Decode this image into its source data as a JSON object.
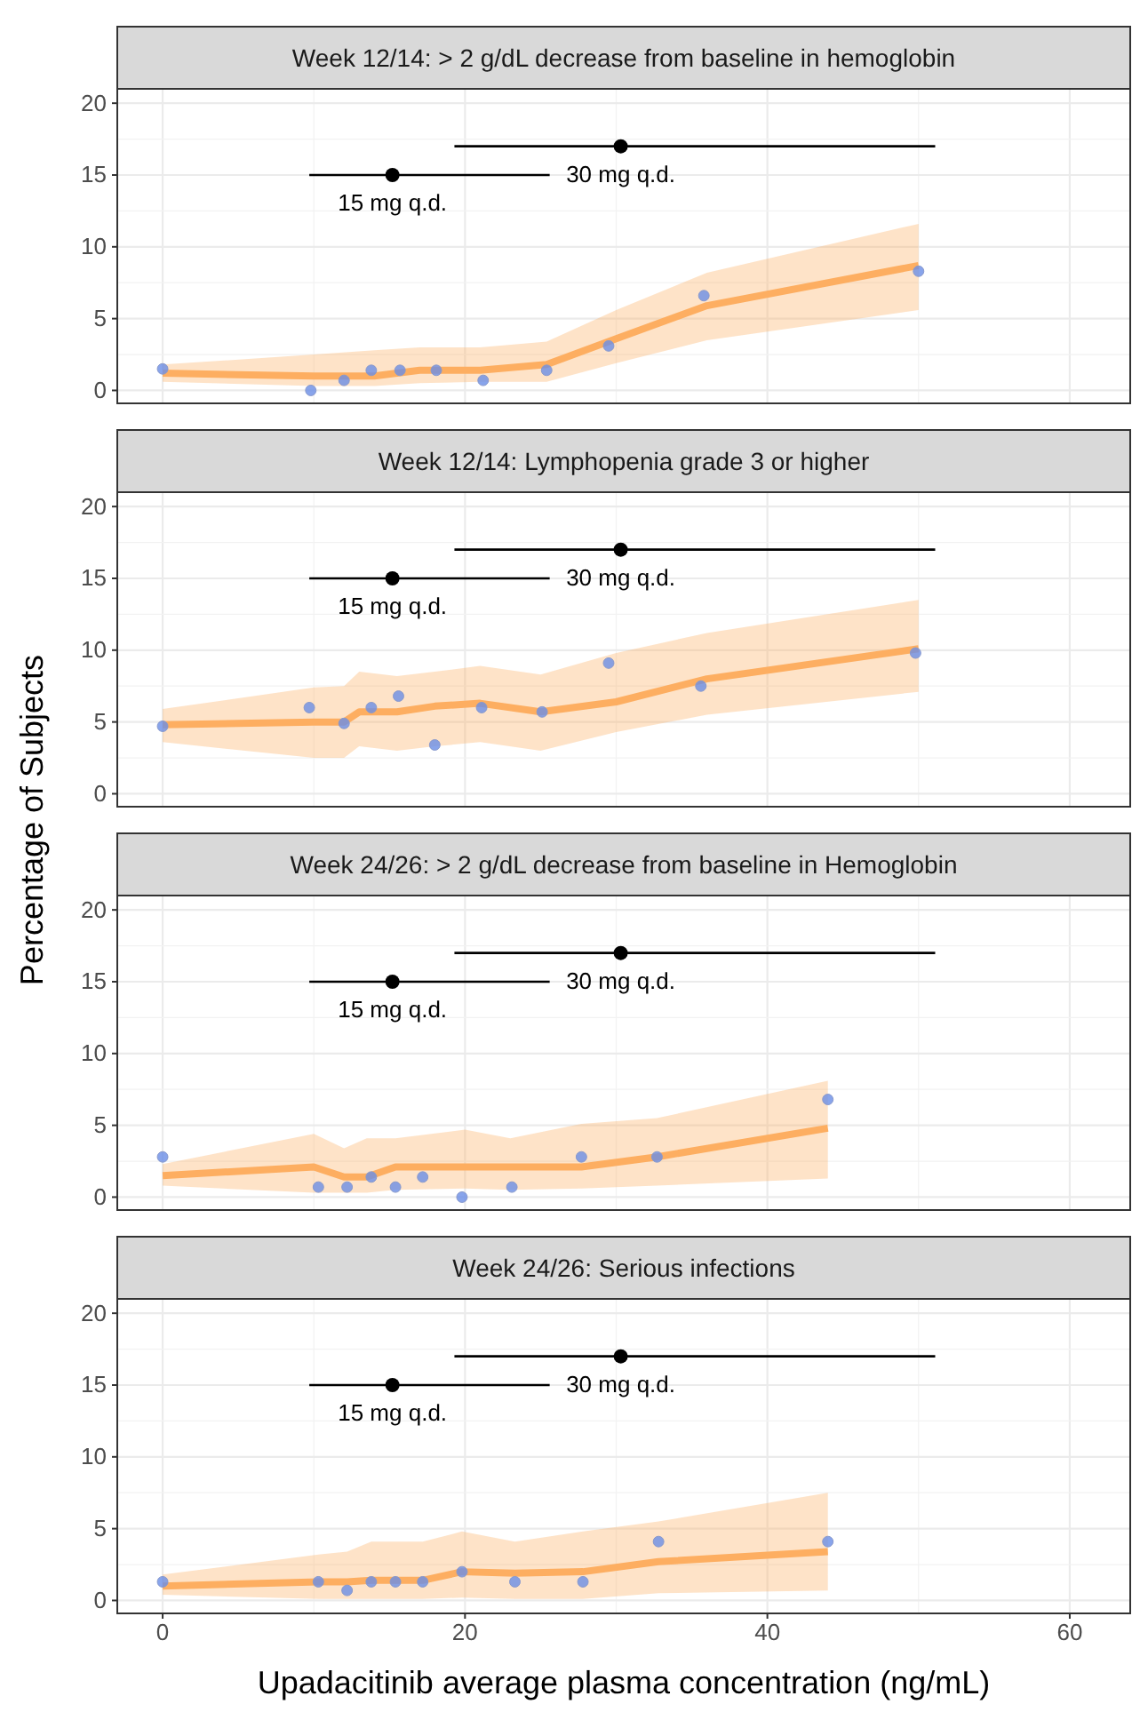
{
  "chart_data": [
    {
      "type": "scatter",
      "title": "Week 12/14: > 2 g/dL decrease from baseline in hemoglobin",
      "xlim": [
        -3,
        64
      ],
      "ylim": [
        -0.9,
        21
      ],
      "xticks": [
        0,
        20,
        40,
        60
      ],
      "yticks": [
        0,
        5,
        10,
        15,
        20
      ],
      "grid": true,
      "legend": false,
      "tick_labels": "y",
      "series": [
        {
          "type": "line",
          "marker": "none",
          "color": "#fdae61",
          "x": [
            0,
            10,
            14,
            17,
            21,
            25.4,
            30,
            36,
            50
          ],
          "values": [
            1.2,
            1.0,
            1.0,
            1.4,
            1.4,
            1.8,
            3.6,
            5.9,
            8.7
          ],
          "lower": [
            0.6,
            0.3,
            0.3,
            0.5,
            0.6,
            0.6,
            1.9,
            3.5,
            5.6
          ],
          "upper": [
            1.8,
            2.5,
            2.8,
            3.0,
            3.0,
            3.4,
            5.6,
            8.2,
            11.6
          ]
        },
        {
          "marker": "circle",
          "color": "#6a8de6",
          "x": [
            0,
            9.8,
            12.0,
            13.8,
            15.7,
            18.1,
            21.2,
            25.4,
            29.5,
            35.8,
            50.0
          ],
          "values": [
            1.5,
            0,
            0.7,
            1.4,
            1.4,
            1.4,
            0.7,
            1.4,
            3.1,
            6.6,
            8.3
          ]
        },
        {
          "marker": "circle",
          "name": "15 mg q.d.",
          "color": "#000000",
          "x": [
            15.2
          ],
          "values": [
            15
          ],
          "xerrors": [
            [
              9.7,
              25.6
            ]
          ]
        },
        {
          "marker": "circle",
          "name": "30 mg q.d.",
          "color": "#000000",
          "x": [
            30.3
          ],
          "values": [
            17
          ],
          "xerrors": [
            [
              19.3,
              51.1
            ]
          ]
        }
      ]
    },
    {
      "type": "scatter",
      "title": "Week 12/14: Lymphopenia grade 3 or higher",
      "ylabel": "Percentage of Subjects",
      "xlim": [
        -3,
        64
      ],
      "ylim": [
        -0.9,
        21
      ],
      "xticks": [
        0,
        20,
        40,
        60
      ],
      "yticks": [
        0,
        5,
        10,
        15,
        20
      ],
      "grid": true,
      "legend": false,
      "tick_labels": "y",
      "series": [
        {
          "type": "line",
          "marker": "none",
          "color": "#fdae61",
          "x": [
            0,
            10,
            12,
            13,
            15.5,
            18,
            21,
            25,
            30,
            36,
            50
          ],
          "values": [
            4.8,
            5.0,
            5.0,
            5.7,
            5.7,
            6.1,
            6.3,
            5.7,
            6.4,
            8.0,
            10.1
          ],
          "lower": [
            3.6,
            2.5,
            2.5,
            3.3,
            3.0,
            3.3,
            3.6,
            3.0,
            4.3,
            5.5,
            7.1
          ],
          "upper": [
            5.9,
            7.4,
            7.5,
            8.5,
            8.2,
            8.5,
            8.9,
            8.3,
            9.8,
            11.2,
            13.5
          ]
        },
        {
          "marker": "circle",
          "color": "#6a8de6",
          "x": [
            0,
            9.7,
            12.0,
            13.8,
            15.6,
            18.0,
            21.1,
            25.1,
            29.5,
            35.6,
            49.8
          ],
          "values": [
            4.7,
            6.0,
            4.9,
            6.0,
            6.8,
            3.4,
            6.0,
            5.7,
            9.1,
            7.5,
            9.8
          ]
        },
        {
          "marker": "circle",
          "name": "15 mg q.d.",
          "color": "#000000",
          "x": [
            15.2
          ],
          "values": [
            15
          ],
          "xerrors": [
            [
              9.7,
              25.6
            ]
          ]
        },
        {
          "marker": "circle",
          "name": "30 mg q.d.",
          "color": "#000000",
          "x": [
            30.3
          ],
          "values": [
            17
          ],
          "xerrors": [
            [
              19.3,
              51.1
            ]
          ]
        }
      ]
    },
    {
      "type": "scatter",
      "title": "Week 24/26: > 2 g/dL decrease from baseline in Hemoglobin",
      "xlim": [
        -3,
        64
      ],
      "ylim": [
        -0.9,
        21
      ],
      "xticks": [
        0,
        20,
        40,
        60
      ],
      "yticks": [
        0,
        5,
        10,
        15,
        20
      ],
      "grid": true,
      "legend": false,
      "tick_labels": "y",
      "series": [
        {
          "type": "line",
          "marker": "none",
          "color": "#fdae61",
          "x": [
            0,
            10,
            12,
            13.5,
            15.4,
            20,
            23,
            27.7,
            32.7,
            44
          ],
          "values": [
            1.5,
            2.1,
            1.4,
            1.4,
            2.1,
            2.1,
            2.1,
            2.1,
            2.8,
            4.8
          ],
          "lower": [
            0.8,
            0.3,
            0.3,
            0.3,
            0.5,
            0.6,
            0.5,
            0.6,
            0.8,
            1.3
          ],
          "upper": [
            2.3,
            4.4,
            3.4,
            4.1,
            4.1,
            4.7,
            4.1,
            5.1,
            5.5,
            8.1
          ]
        },
        {
          "marker": "circle",
          "color": "#6a8de6",
          "x": [
            0,
            10.3,
            12.2,
            13.8,
            15.4,
            17.2,
            19.8,
            23.1,
            27.7,
            32.7,
            44.0
          ],
          "values": [
            2.8,
            0.7,
            0.7,
            1.4,
            0.7,
            1.4,
            0,
            0.7,
            2.8,
            2.8,
            6.8
          ]
        },
        {
          "marker": "circle",
          "name": "15 mg q.d.",
          "color": "#000000",
          "x": [
            15.2
          ],
          "values": [
            15
          ],
          "xerrors": [
            [
              9.7,
              25.6
            ]
          ]
        },
        {
          "marker": "circle",
          "name": "30 mg q.d.",
          "color": "#000000",
          "x": [
            30.3
          ],
          "values": [
            17
          ],
          "xerrors": [
            [
              19.3,
              51.1
            ]
          ]
        }
      ]
    },
    {
      "type": "scatter",
      "title": "Week 24/26: Serious infections",
      "xlabel": "Upadacitinib average plasma concentration (ng/mL)",
      "xlim": [
        -3,
        64
      ],
      "ylim": [
        -0.9,
        21
      ],
      "xticks": [
        0,
        20,
        40,
        60
      ],
      "yticks": [
        0,
        5,
        10,
        15,
        20
      ],
      "grid": true,
      "legend": false,
      "series": [
        {
          "type": "line",
          "marker": "none",
          "color": "#fdae61",
          "x": [
            0,
            10.3,
            12.2,
            13.8,
            17.2,
            19.8,
            23.3,
            27.8,
            32.8,
            44
          ],
          "values": [
            1.0,
            1.3,
            1.3,
            1.4,
            1.4,
            2.0,
            1.9,
            2.0,
            2.7,
            3.4
          ],
          "lower": [
            0.4,
            0.1,
            0.1,
            0.1,
            0.1,
            0.2,
            0.1,
            0.1,
            0.5,
            0.7
          ],
          "upper": [
            1.8,
            3.2,
            3.4,
            4.1,
            4.1,
            4.8,
            4.1,
            4.8,
            5.5,
            7.5
          ]
        },
        {
          "marker": "circle",
          "color": "#6a8de6",
          "x": [
            0,
            10.3,
            12.2,
            13.8,
            15.4,
            17.2,
            19.8,
            23.3,
            27.8,
            32.8,
            44.0
          ],
          "values": [
            1.3,
            1.3,
            0.7,
            1.3,
            1.3,
            1.3,
            2.0,
            1.3,
            1.3,
            4.1,
            4.1
          ]
        },
        {
          "marker": "circle",
          "name": "15 mg q.d.",
          "color": "#000000",
          "x": [
            15.2
          ],
          "values": [
            15
          ],
          "xerrors": [
            [
              9.7,
              25.6
            ]
          ]
        },
        {
          "marker": "circle",
          "name": "30 mg q.d.",
          "color": "#000000",
          "x": [
            30.3
          ],
          "values": [
            17
          ],
          "xerrors": [
            [
              19.3,
              51.1
            ]
          ]
        }
      ]
    }
  ]
}
